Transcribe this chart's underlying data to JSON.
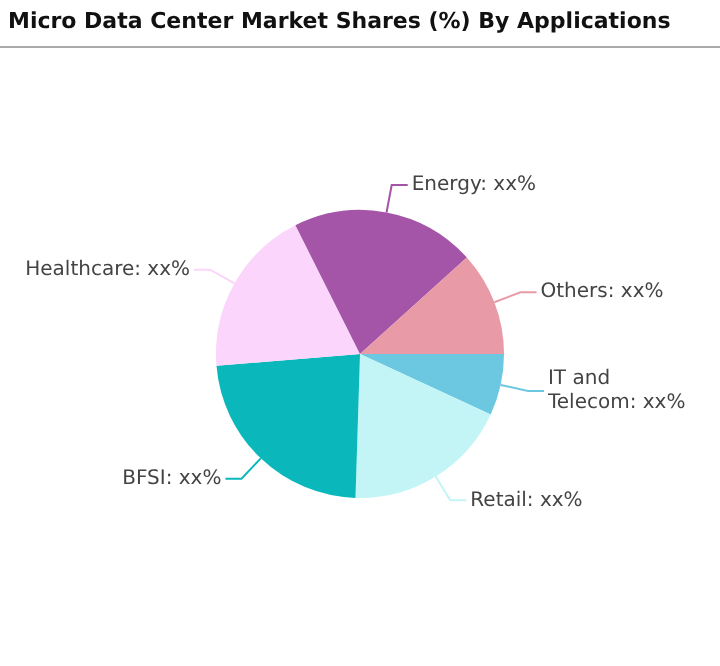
{
  "chart_data": {
    "type": "pie",
    "title": "Micro Data Center Market Shares (%) By Applications",
    "categories": [
      "IT and Telecom",
      "Retail",
      "BFSI",
      "Healthcare",
      "Energy",
      "Others"
    ],
    "values": [
      6.9,
      18.6,
      23.2,
      18.9,
      20.7,
      11.7
    ],
    "colors": [
      "#6cc8e0",
      "#c3f5f7",
      "#0ab8bc",
      "#fbd5fb",
      "#a455a8",
      "#e89aa6"
    ],
    "value_labels": [
      "xx%",
      "xx%",
      "xx%",
      "xx%",
      "xx%",
      "xx%"
    ],
    "legend": false
  }
}
